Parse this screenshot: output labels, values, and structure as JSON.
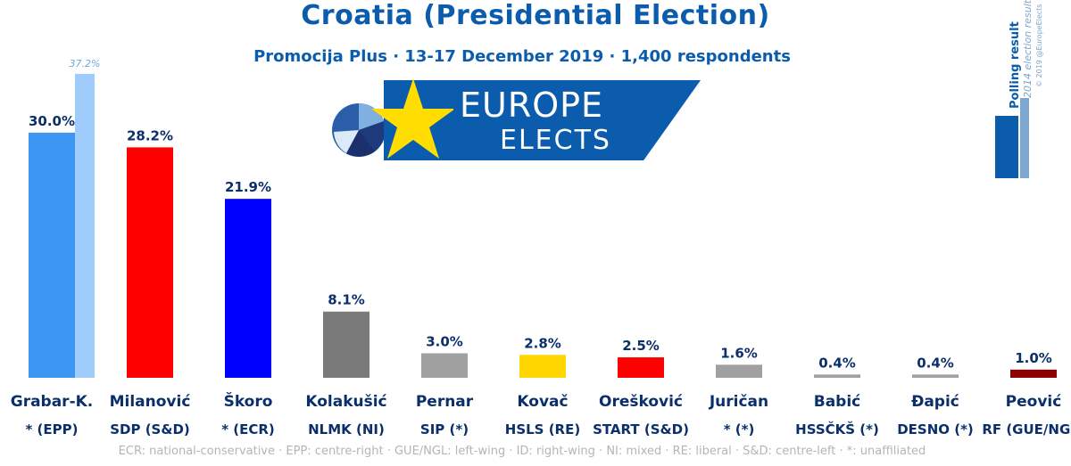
{
  "header": {
    "title": "Croatia (Presidential Election)",
    "subtitle": "Promocija Plus · 13-17 December 2019 · 1,400 respondents"
  },
  "logo": {
    "line1": "EUROPE",
    "line2": "ELECTS"
  },
  "legend": {
    "polling": "Polling result",
    "previous": "2014 election result",
    "credit": "© 2019 @EuropeElects"
  },
  "footnote": "ECR: national-conservative · EPP: centre-right · GUE/NGL: left-wing · ID: right-wing · NI: mixed · RE: liberal · S&D: centre-left · *: unaffiliated",
  "chart_data": {
    "type": "bar",
    "title": "Croatia (Presidential Election)",
    "ylim": [
      0,
      40
    ],
    "value_suffix": "%",
    "categories": [
      "Grabar-K.",
      "Milanović",
      "Škoro",
      "Kolakušić",
      "Pernar",
      "Kovač",
      "Orešković",
      "Juričan",
      "Babić",
      "Đapić",
      "Peović"
    ],
    "parties": [
      "* (EPP)",
      "SDP (S&D)",
      "* (ECR)",
      "NLMK (NI)",
      "SIP (*)",
      "HSLS (RE)",
      "START (S&D)",
      "* (*)",
      "HSSČKŠ (*)",
      "DESNO (*)",
      "RF (GUE/NGL)"
    ],
    "series": [
      {
        "name": "Polling result",
        "values": [
          30.0,
          28.2,
          21.9,
          8.1,
          3.0,
          2.8,
          2.5,
          1.6,
          0.4,
          0.4,
          1.0
        ]
      },
      {
        "name": "2014 election result",
        "values": [
          37.2,
          null,
          null,
          null,
          null,
          null,
          null,
          null,
          null,
          null,
          null
        ]
      }
    ],
    "labels": [
      "30.0%",
      "28.2%",
      "21.9%",
      "8.1%",
      "3.0%",
      "2.8%",
      "2.5%",
      "1.6%",
      "0.4%",
      "0.4%",
      "1.0%"
    ],
    "previous_labels": [
      "37.2%",
      null,
      null,
      null,
      null,
      null,
      null,
      null,
      null,
      null,
      null
    ],
    "colors": [
      "#3d97f2",
      "#ff0000",
      "#0000ff",
      "#7a7a7a",
      "#a0a0a0",
      "#ffd500",
      "#ff0000",
      "#a0a0a0",
      "#a0a0a0",
      "#a0a0a0",
      "#8b0000"
    ],
    "previous_color": "#9fccfb"
  }
}
